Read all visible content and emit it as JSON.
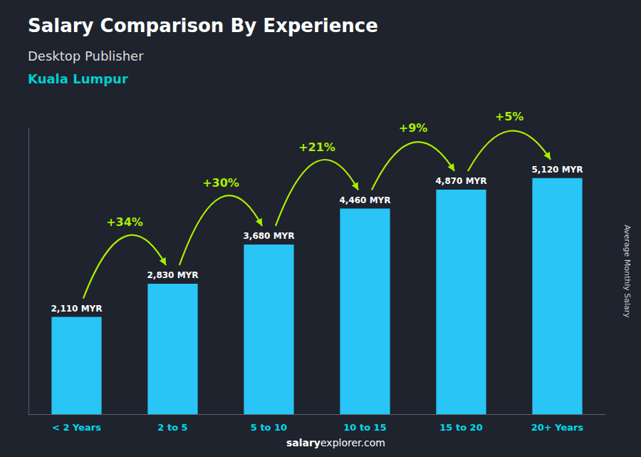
{
  "chart_data": {
    "type": "bar",
    "title": "Salary Comparison By Experience",
    "subtitle": "Desktop Publisher",
    "location": "Kuala Lumpur",
    "categories": [
      "< 2 Years",
      "2 to 5",
      "5 to 10",
      "10 to 15",
      "15 to 20",
      "20+ Years"
    ],
    "values": [
      2110,
      2830,
      3680,
      4460,
      4870,
      5120
    ],
    "value_labels": [
      "2,110 MYR",
      "2,830 MYR",
      "3,680 MYR",
      "4,460 MYR",
      "4,870 MYR",
      "5,120 MYR"
    ],
    "data_labels": true,
    "annotations": [
      "+34%",
      "+30%",
      "+21%",
      "+9%",
      "+5%"
    ],
    "color": "#29C5F6",
    "ylabel": "Average Monthly Salary",
    "footer": [
      "salary",
      "explorer.com"
    ],
    "ylim": [
      0,
      6200
    ],
    "yticks": [],
    "tick_labels": "x",
    "grid": false
  }
}
